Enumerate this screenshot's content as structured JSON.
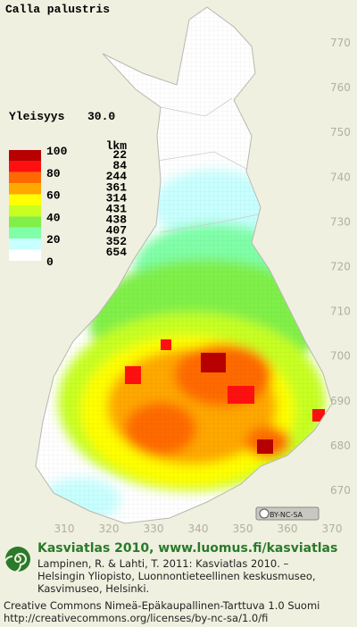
{
  "title": "Calla palustris",
  "frequency": {
    "label": "Yleisyys",
    "value": "30.0"
  },
  "legend": {
    "count_header": "lkm",
    "class_labels": [
      "100",
      "80",
      "60",
      "40",
      "20",
      "0"
    ],
    "classes": [
      {
        "color": "#b80000",
        "count": "22"
      },
      {
        "color": "#ff1010",
        "count": "84"
      },
      {
        "color": "#ff6a00",
        "count": "244"
      },
      {
        "color": "#ffa800",
        "count": "361"
      },
      {
        "color": "#ffff00",
        "count": "314"
      },
      {
        "color": "#c8ff20",
        "count": "431"
      },
      {
        "color": "#80f048",
        "count": "438"
      },
      {
        "color": "#80ffa8",
        "count": "407"
      },
      {
        "color": "#c8ffff",
        "count": "352"
      },
      {
        "color": "#ffffff",
        "count": "654"
      }
    ]
  },
  "map": {
    "y_ticks": [
      "770",
      "760",
      "750",
      "740",
      "730",
      "720",
      "710",
      "700",
      "690",
      "680",
      "670"
    ],
    "x_ticks": [
      "310",
      "320",
      "330",
      "340",
      "350",
      "360",
      "370"
    ]
  },
  "license_badge": "BY-NC-SA",
  "footer": {
    "heading": "Kasviatlas 2010, www.luomus.fi/kasviatlas",
    "citation": [
      "Lampinen, R. & Lahti, T. 2011: Kasviatlas 2010. –",
      "Helsingin Yliopisto, Luonnontieteellinen keskusmuseo,",
      "Kasvimuseo, Helsinki."
    ],
    "license": [
      "Creative Commons Nimeä-Epäkaupallinen-Tarttuva 1.0 Suomi",
      "http://creativecommons.org/licenses/by-nc-sa/1.0/fi"
    ]
  }
}
